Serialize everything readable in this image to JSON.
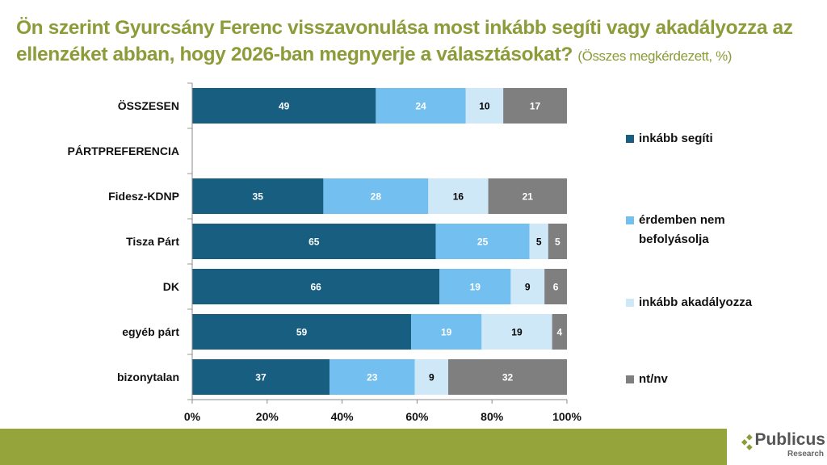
{
  "title": {
    "main": "Ön szerint Gyurcsány Ferenc visszavonulása most inkább segíti vagy akadályozza az ellenzéket abban, hogy 2026-ban megnyerje a választásokat?",
    "subtitle": "(Összes megkérdezett, %)"
  },
  "chart_data": {
    "type": "bar",
    "orientation": "horizontal",
    "stacked": true,
    "percent": true,
    "categories": [
      "ÖSSZESEN",
      "PÁRTPREFERENCIA",
      "Fidesz-KDNP",
      "Tisza Párt",
      "DK",
      "egyéb párt",
      "bizonytalan"
    ],
    "series": [
      {
        "name": "inkább segíti",
        "color": "#175e80",
        "label_color": "#ffffff",
        "values": [
          49,
          null,
          35,
          65,
          66,
          59,
          37
        ]
      },
      {
        "name": "érdemben nem befolyásolja",
        "color": "#73bff0",
        "label_color": "#ffffff",
        "values": [
          24,
          null,
          28,
          25,
          19,
          19,
          23
        ]
      },
      {
        "name": "inkább akadályozza",
        "color": "#cfe8f8",
        "label_color": "#000000",
        "values": [
          10,
          null,
          16,
          5,
          9,
          19,
          9
        ]
      },
      {
        "name": "nt/nv",
        "color": "#7f7f7f",
        "label_color": "#ffffff",
        "values": [
          17,
          null,
          21,
          5,
          6,
          4,
          32
        ]
      }
    ],
    "xticks": [
      "0%",
      "20%",
      "40%",
      "60%",
      "80%",
      "100%"
    ],
    "xlim": [
      0,
      100
    ],
    "legend": "right"
  },
  "legend": [
    "inkább segíti",
    "érdemben nem",
    "befolyásolja",
    "inkább akadályozza",
    "nt/nv"
  ],
  "logo": {
    "name": "Publicus",
    "sub": "Research"
  }
}
